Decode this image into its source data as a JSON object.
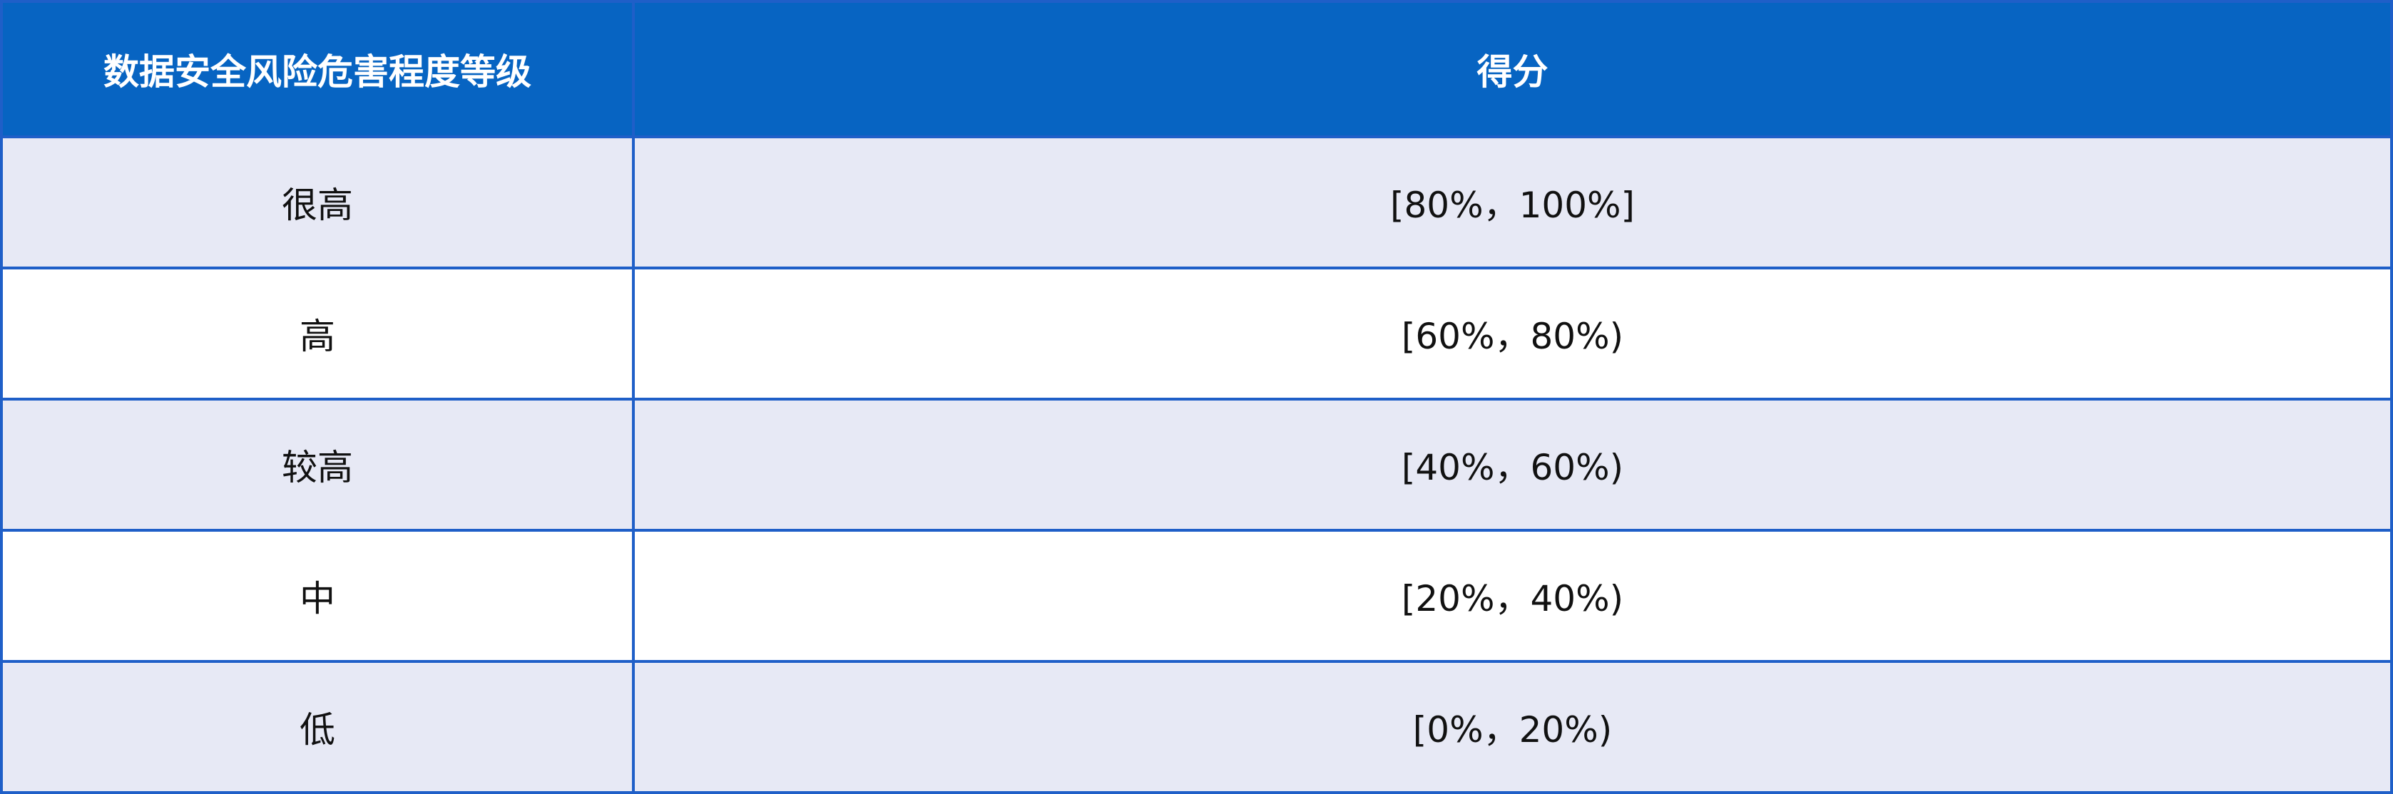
{
  "table": {
    "headers": [
      "数据安全风险危害程度等级",
      "得分"
    ],
    "rows": [
      {
        "level": "很高",
        "score": "[80%，100%]"
      },
      {
        "level": "高",
        "score": "[60%，80%)"
      },
      {
        "level": "较高",
        "score": "[40%，60%)"
      },
      {
        "level": "中",
        "score": "[20%，40%)"
      },
      {
        "level": "低",
        "score": "[0%，20%)"
      }
    ]
  },
  "colors": {
    "header_bg": "#0764c2",
    "stripe_bg": "#e7e9f5",
    "border": "#1f5fc8"
  }
}
